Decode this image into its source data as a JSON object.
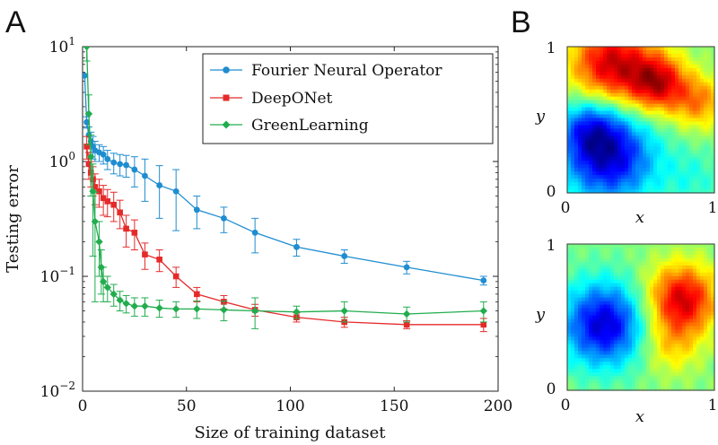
{
  "panels": {
    "a_label": "A",
    "b_label": "B"
  },
  "chart_data": [
    {
      "type": "line",
      "panel": "A",
      "title": "",
      "xlabel": "Size of training dataset",
      "ylabel": "Testing error",
      "x_ticks": [
        0,
        50,
        100,
        150,
        200
      ],
      "y_ticks": [
        {
          "value": 0.01,
          "base": "10",
          "exp": "−2"
        },
        {
          "value": 0.1,
          "base": "10",
          "exp": "−1"
        },
        {
          "value": 1,
          "base": "10",
          "exp": "0"
        },
        {
          "value": 10,
          "base": "10",
          "exp": "1"
        }
      ],
      "xlim": [
        0,
        200
      ],
      "ylim": [
        0.01,
        10
      ],
      "yscale": "log",
      "legend_position": "top-right",
      "series": [
        {
          "name": "Fourier Neural Operator",
          "color": "#1f8dd0",
          "marker": "circle",
          "x": [
            1,
            2,
            3,
            4,
            5,
            6,
            8,
            10,
            12,
            15,
            18,
            21,
            25,
            30,
            37,
            45,
            55,
            68,
            83,
            103,
            126,
            156,
            193
          ],
          "y": [
            5.6,
            2.2,
            1.7,
            1.5,
            1.35,
            1.25,
            1.2,
            1.15,
            1.05,
            0.98,
            0.95,
            0.93,
            0.85,
            0.75,
            0.62,
            0.55,
            0.38,
            0.32,
            0.24,
            0.18,
            0.15,
            0.12,
            0.092
          ],
          "err": [
            0.15,
            0.25,
            0.3,
            0.3,
            0.3,
            0.25,
            0.2,
            0.2,
            0.2,
            0.2,
            0.2,
            0.2,
            0.25,
            0.3,
            0.3,
            0.3,
            0.12,
            0.08,
            0.08,
            0.03,
            0.02,
            0.015,
            0.008
          ]
        },
        {
          "name": "DeepONet",
          "color": "#e52a2a",
          "marker": "square",
          "x": [
            2,
            3,
            4,
            5,
            6,
            8,
            10,
            12,
            15,
            18,
            21,
            25,
            30,
            37,
            45,
            55,
            68,
            83,
            103,
            126,
            156,
            193
          ],
          "y": [
            1.35,
            0.95,
            0.8,
            0.7,
            0.6,
            0.55,
            0.48,
            0.45,
            0.42,
            0.36,
            0.26,
            0.24,
            0.155,
            0.14,
            0.1,
            0.07,
            0.06,
            0.051,
            0.044,
            0.04,
            0.038,
            0.038
          ],
          "err": [
            0.3,
            0.25,
            0.2,
            0.2,
            0.18,
            0.15,
            0.14,
            0.12,
            0.12,
            0.1,
            0.08,
            0.07,
            0.04,
            0.03,
            0.02,
            0.01,
            0.008,
            0.006,
            0.004,
            0.004,
            0.003,
            0.005
          ]
        },
        {
          "name": "GreenLearning",
          "color": "#21ad4e",
          "marker": "diamond",
          "x": [
            2,
            3,
            4,
            5,
            6,
            8,
            9,
            10,
            12,
            15,
            18,
            21,
            25,
            30,
            37,
            45,
            55,
            68,
            83,
            103,
            126,
            156,
            193
          ],
          "y": [
            10,
            2.6,
            1.1,
            0.55,
            0.3,
            0.2,
            0.12,
            0.09,
            0.08,
            0.07,
            0.062,
            0.058,
            0.055,
            0.055,
            0.053,
            0.052,
            0.052,
            0.051,
            0.05,
            0.049,
            0.05,
            0.047,
            0.05
          ],
          "err": [
            2.5,
            1.2,
            0.6,
            0.4,
            0.24,
            0.1,
            0.05,
            0.03,
            0.02,
            0.015,
            0.012,
            0.01,
            0.01,
            0.01,
            0.009,
            0.008,
            0.009,
            0.01,
            0.015,
            0.006,
            0.01,
            0.007,
            0.01
          ]
        }
      ]
    },
    {
      "type": "heatmap",
      "panel": "B-top",
      "xlabel": "x",
      "ylabel": "y",
      "x_ticks": [
        "0",
        "1"
      ],
      "y_ticks": [
        "0",
        "1"
      ],
      "xlim": [
        0,
        1
      ],
      "ylim": [
        0,
        1
      ],
      "colormap": "jet",
      "description_of_field": [
        {
          "cx": 0.3,
          "cy": 0.88,
          "value": 1.0,
          "spread": 0.2
        },
        {
          "cx": 0.62,
          "cy": 0.75,
          "value": 0.9,
          "spread": 0.14
        },
        {
          "cx": 0.9,
          "cy": 0.62,
          "value": 0.55,
          "spread": 0.13
        },
        {
          "cx": 0.28,
          "cy": 0.25,
          "value": -1.0,
          "spread": 0.22
        },
        {
          "cx": 0.15,
          "cy": 0.45,
          "value": -0.5,
          "spread": 0.14
        },
        {
          "cx": 0.85,
          "cy": 0.1,
          "value": -0.2,
          "spread": 0.15
        }
      ]
    },
    {
      "type": "heatmap",
      "panel": "B-bottom",
      "xlabel": "x",
      "ylabel": "y",
      "x_ticks": [
        "0",
        "1"
      ],
      "y_ticks": [
        "0",
        "1"
      ],
      "xlim": [
        0,
        1
      ],
      "ylim": [
        0,
        1
      ],
      "colormap": "jet",
      "description_of_field": [
        {
          "cx": 0.25,
          "cy": 0.45,
          "value": -1.0,
          "spread": 0.2
        },
        {
          "cx": 0.78,
          "cy": 0.62,
          "value": 1.0,
          "spread": 0.17
        },
        {
          "cx": 0.7,
          "cy": 0.3,
          "value": 0.35,
          "spread": 0.14
        }
      ]
    }
  ]
}
